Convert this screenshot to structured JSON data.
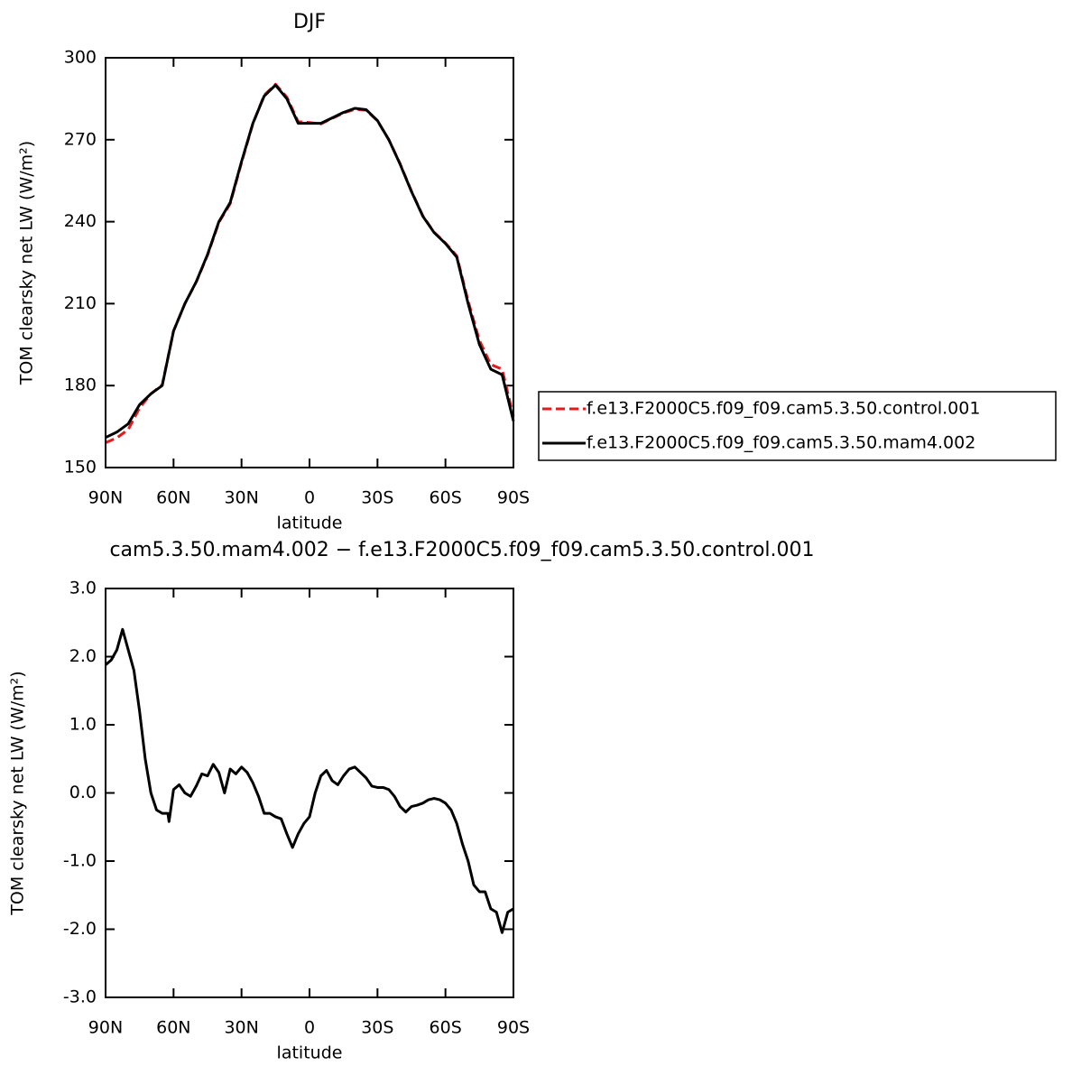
{
  "chart_data": [
    {
      "type": "line",
      "title": "DJF",
      "xlabel": "latitude",
      "ylabel": "TOM clearsky net LW (W/m²)",
      "x": [
        90,
        85,
        80,
        75,
        70,
        65,
        60,
        55,
        50,
        45,
        40,
        35,
        30,
        25,
        20,
        15,
        10,
        5,
        0,
        -5,
        -10,
        -15,
        -20,
        -25,
        -30,
        -35,
        -40,
        -45,
        -50,
        -55,
        -60,
        -65,
        -70,
        -75,
        -80,
        -85,
        -90
      ],
      "series": [
        {
          "name": "f.e13.F2000C5.f09_f09.cam5.3.50.control.001",
          "color": "#e41a1c",
          "linestyle": "dashed",
          "values": [
            159.1,
            160.9,
            163.9,
            171.8,
            177,
            180.3,
            200,
            210,
            217.9,
            227.7,
            239.7,
            246.6,
            261.6,
            275.8,
            286.3,
            290.3,
            285.6,
            276.6,
            276.3,
            275.8,
            277.8,
            279.8,
            281.1,
            280.8,
            276.9,
            270,
            261.2,
            251.2,
            242.2,
            236.1,
            232.2,
            227.5,
            211,
            196.5,
            187.7,
            186,
            168.7
          ]
        },
        {
          "name": "f.e13.F2000C5.f09_f09.cam5.3.50.mam4.002",
          "color": "#000000",
          "linestyle": "solid",
          "values": [
            161,
            163,
            166,
            173,
            177,
            180,
            200,
            210,
            218,
            228,
            240,
            247,
            262,
            276,
            286,
            290,
            285,
            276,
            276,
            276,
            278,
            280,
            281.5,
            281,
            277,
            270,
            261,
            251,
            242,
            236,
            232,
            227,
            210,
            195,
            186,
            184,
            167
          ]
        }
      ],
      "xlim": [
        90,
        -90
      ],
      "xticks": [
        {
          "value": 90,
          "label": "90N"
        },
        {
          "value": 60,
          "label": "60N"
        },
        {
          "value": 30,
          "label": "30N"
        },
        0,
        {
          "value": -30,
          "label": "30S"
        },
        {
          "value": -60,
          "label": "60S"
        },
        {
          "value": -90,
          "label": "90S"
        }
      ],
      "ylim": [
        150,
        300
      ],
      "yticks": [
        150,
        180,
        210,
        240,
        270,
        300
      ],
      "legend": "right"
    },
    {
      "type": "line",
      "title": "cam5.3.50.mam4.002 − f.e13.F2000C5.f09_f09.cam5.3.50.control.001",
      "xlabel": "latitude",
      "ylabel": "TOM clearsky net LW (W/m²)",
      "x": [
        90,
        87.5,
        85,
        82.5,
        80,
        77.5,
        75,
        72.5,
        70,
        67.5,
        65,
        62.5,
        62,
        60,
        57.5,
        55,
        52.5,
        50,
        47.5,
        45,
        42.5,
        40,
        37.5,
        35,
        32.5,
        30,
        27.5,
        25,
        22.5,
        20,
        17.5,
        15,
        12.5,
        10,
        7.5,
        5,
        2.5,
        0,
        -2.5,
        -5,
        -7.5,
        -10,
        -12.5,
        -15,
        -17.5,
        -20,
        -22.5,
        -25,
        -27.5,
        -30,
        -32.5,
        -35,
        -37.5,
        -40,
        -42.5,
        -45,
        -47.5,
        -50,
        -52.5,
        -55,
        -57.5,
        -60,
        -62.5,
        -65,
        -67.5,
        -70,
        -72.5,
        -75,
        -77.5,
        -80,
        -82.5,
        -85,
        -87.5,
        -90
      ],
      "series": [
        {
          "color": "#000000",
          "linestyle": "solid",
          "values": [
            1.88,
            1.95,
            2.1,
            2.4,
            2.1,
            1.8,
            1.2,
            0.5,
            0.0,
            -0.25,
            -0.3,
            -0.3,
            -0.42,
            0.05,
            0.12,
            0.0,
            -0.05,
            0.1,
            0.28,
            0.25,
            0.42,
            0.3,
            0.0,
            0.35,
            0.28,
            0.38,
            0.3,
            0.15,
            -0.05,
            -0.3,
            -0.3,
            -0.35,
            -0.38,
            -0.6,
            -0.8,
            -0.6,
            -0.45,
            -0.35,
            0.0,
            0.25,
            0.33,
            0.18,
            0.12,
            0.25,
            0.35,
            0.38,
            0.3,
            0.22,
            0.1,
            0.08,
            0.08,
            0.05,
            -0.05,
            -0.2,
            -0.28,
            -0.2,
            -0.18,
            -0.15,
            -0.1,
            -0.08,
            -0.1,
            -0.15,
            -0.25,
            -0.45,
            -0.75,
            -1.0,
            -1.35,
            -1.45,
            -1.45,
            -1.7,
            -1.75,
            -2.05,
            -1.75,
            -1.7
          ]
        }
      ],
      "xlim": [
        90,
        -90
      ],
      "xticks": [
        {
          "value": 90,
          "label": "90N"
        },
        {
          "value": 60,
          "label": "60N"
        },
        {
          "value": 30,
          "label": "30N"
        },
        0,
        {
          "value": -30,
          "label": "30S"
        },
        {
          "value": -60,
          "label": "60S"
        },
        {
          "value": -90,
          "label": "90S"
        }
      ],
      "ylim": [
        -3,
        3
      ],
      "yticks": [
        {
          "value": -3,
          "label": "-3.0"
        },
        {
          "value": -2,
          "label": "-2.0"
        },
        {
          "value": -1,
          "label": "-1.0"
        },
        {
          "value": 0,
          "label": "0.0"
        },
        {
          "value": 1,
          "label": "1.0"
        },
        {
          "value": 2,
          "label": "2.0"
        },
        {
          "value": 3,
          "label": "3.0"
        }
      ]
    }
  ]
}
